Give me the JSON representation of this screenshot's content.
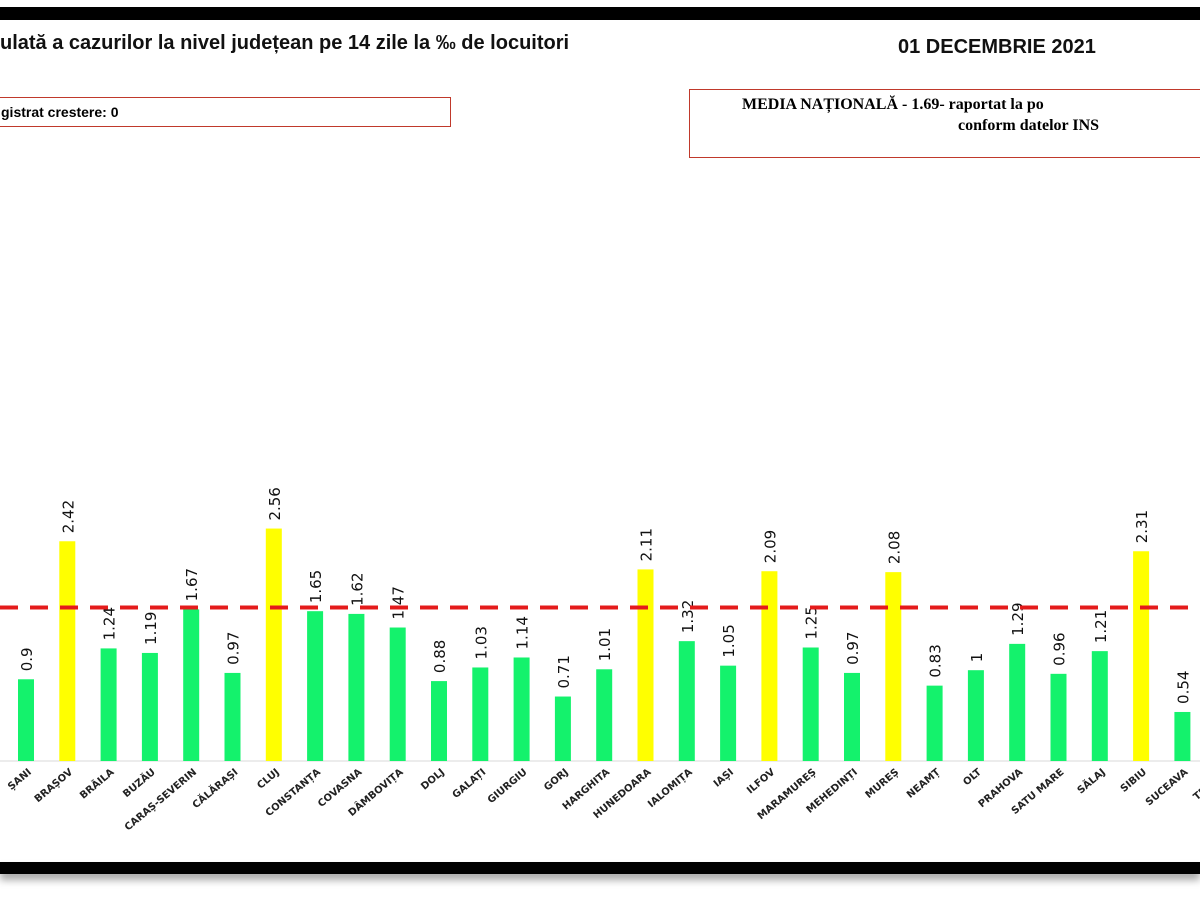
{
  "header": {
    "title": "ulată a cazurilor la nivel județean pe 14 zile la ‰ de locuitori",
    "date": "01 DECEMBRIE 2021",
    "note_left": "gistrat crestere: 0",
    "note_right_line1": "MEDIA NAȚIONALĂ  - 1.69-  raportat la po",
    "note_right_line2": "conform datelor INS"
  },
  "colors": {
    "below": "#14F26C",
    "above": "#FFFF00",
    "reference": "#E41B1B"
  },
  "chart_data": {
    "type": "bar",
    "title": "ulată a cazurilor la nivel județean pe 14 zile la ‰ de locuitori",
    "xlabel": "",
    "ylabel": "",
    "ylim": [
      0,
      2.8
    ],
    "grid": false,
    "reference_line": {
      "value": 1.69,
      "label": "MEDIA NAȚIONALĂ"
    },
    "categories": [
      "ȘANI",
      "BRAȘOV",
      "BRĂILA",
      "BUZĂU",
      "CARAȘ-SEVERIN",
      "CĂLĂRAȘI",
      "CLUJ",
      "CONSTANȚA",
      "COVASNA",
      "DÂMBOVIȚA",
      "DOLJ",
      "GALAȚI",
      "GIURGIU",
      "GORJ",
      "HARGHITA",
      "HUNEDOARA",
      "IALOMIȚA",
      "IAȘI",
      "ILFOV",
      "MARAMUREȘ",
      "MEHEDINȚI",
      "MUREȘ",
      "NEAMȚ",
      "OLT",
      "PRAHOVA",
      "SATU MARE",
      "SĂLAJ",
      "SIBIU",
      "SUCEAVA",
      "TELEOR"
    ],
    "values": [
      0.9,
      2.42,
      1.24,
      1.19,
      1.67,
      0.97,
      2.56,
      1.65,
      1.62,
      1.47,
      0.88,
      1.03,
      1.14,
      0.71,
      1.01,
      2.11,
      1.32,
      1.05,
      2.09,
      1.25,
      0.97,
      2.08,
      0.83,
      1,
      1.29,
      0.96,
      1.21,
      2.31,
      0.54,
      null
    ],
    "value_labels": [
      "0.9",
      "2.42",
      "1.24",
      "1.19",
      "1.67",
      "0.97",
      "2.56",
      "1.65",
      "1.62",
      "1.47",
      "0.88",
      "1.03",
      "1.14",
      "0.71",
      "1.01",
      "2.11",
      "1.32",
      "1.05",
      "2.09",
      "1.25",
      "0.97",
      "2.08",
      "0.83",
      "1",
      "1.29",
      "0.96",
      "1.21",
      "2.31",
      "0.54",
      ""
    ]
  }
}
